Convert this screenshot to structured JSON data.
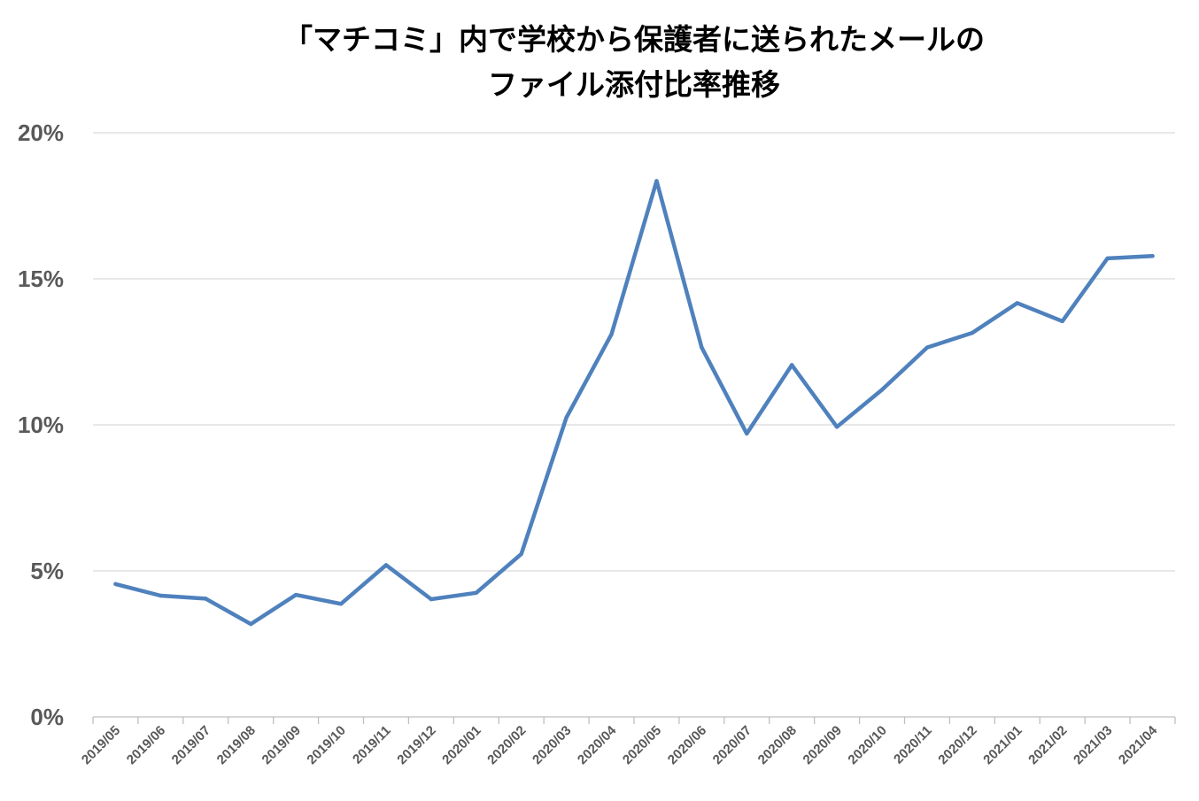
{
  "chart_data": {
    "type": "line",
    "title_lines": [
      "「マチコミ」内で学校から保護者に送られたメールの",
      "ファイル添付比率推移"
    ],
    "xlabel": "",
    "ylabel": "",
    "ylim": [
      0,
      0.2
    ],
    "y_ticks": [
      {
        "value": 0,
        "label": "0%"
      },
      {
        "value": 0.05,
        "label": "5%"
      },
      {
        "value": 0.1,
        "label": "10%"
      },
      {
        "value": 0.15,
        "label": "15%"
      },
      {
        "value": 0.2,
        "label": "20%"
      }
    ],
    "grid": "horizontal",
    "legend": "none",
    "categories": [
      "2019/05",
      "2019/06",
      "2019/07",
      "2019/08",
      "2019/09",
      "2019/10",
      "2019/11",
      "2019/12",
      "2020/01",
      "2020/02",
      "2020/03",
      "2020/04",
      "2020/05",
      "2020/06",
      "2020/07",
      "2020/08",
      "2020/09",
      "2020/10",
      "2020/11",
      "2020/12",
      "2021/01",
      "2021/02",
      "2021/03",
      "2021/04"
    ],
    "series": [
      {
        "color": "#4f81bd",
        "values": [
          0.0455,
          0.0415,
          0.0405,
          0.0318,
          0.0418,
          0.0387,
          0.052,
          0.0403,
          0.0425,
          0.0558,
          0.1025,
          0.131,
          0.1835,
          0.1265,
          0.097,
          0.1205,
          0.0993,
          0.112,
          0.1265,
          0.1315,
          0.1417,
          0.1355,
          0.157,
          0.1578
        ]
      }
    ]
  },
  "colors": {
    "gridline": "#d9d9d9",
    "axis": "#bfbfbf",
    "tick_text": "#595959",
    "title_text": "#000000"
  }
}
